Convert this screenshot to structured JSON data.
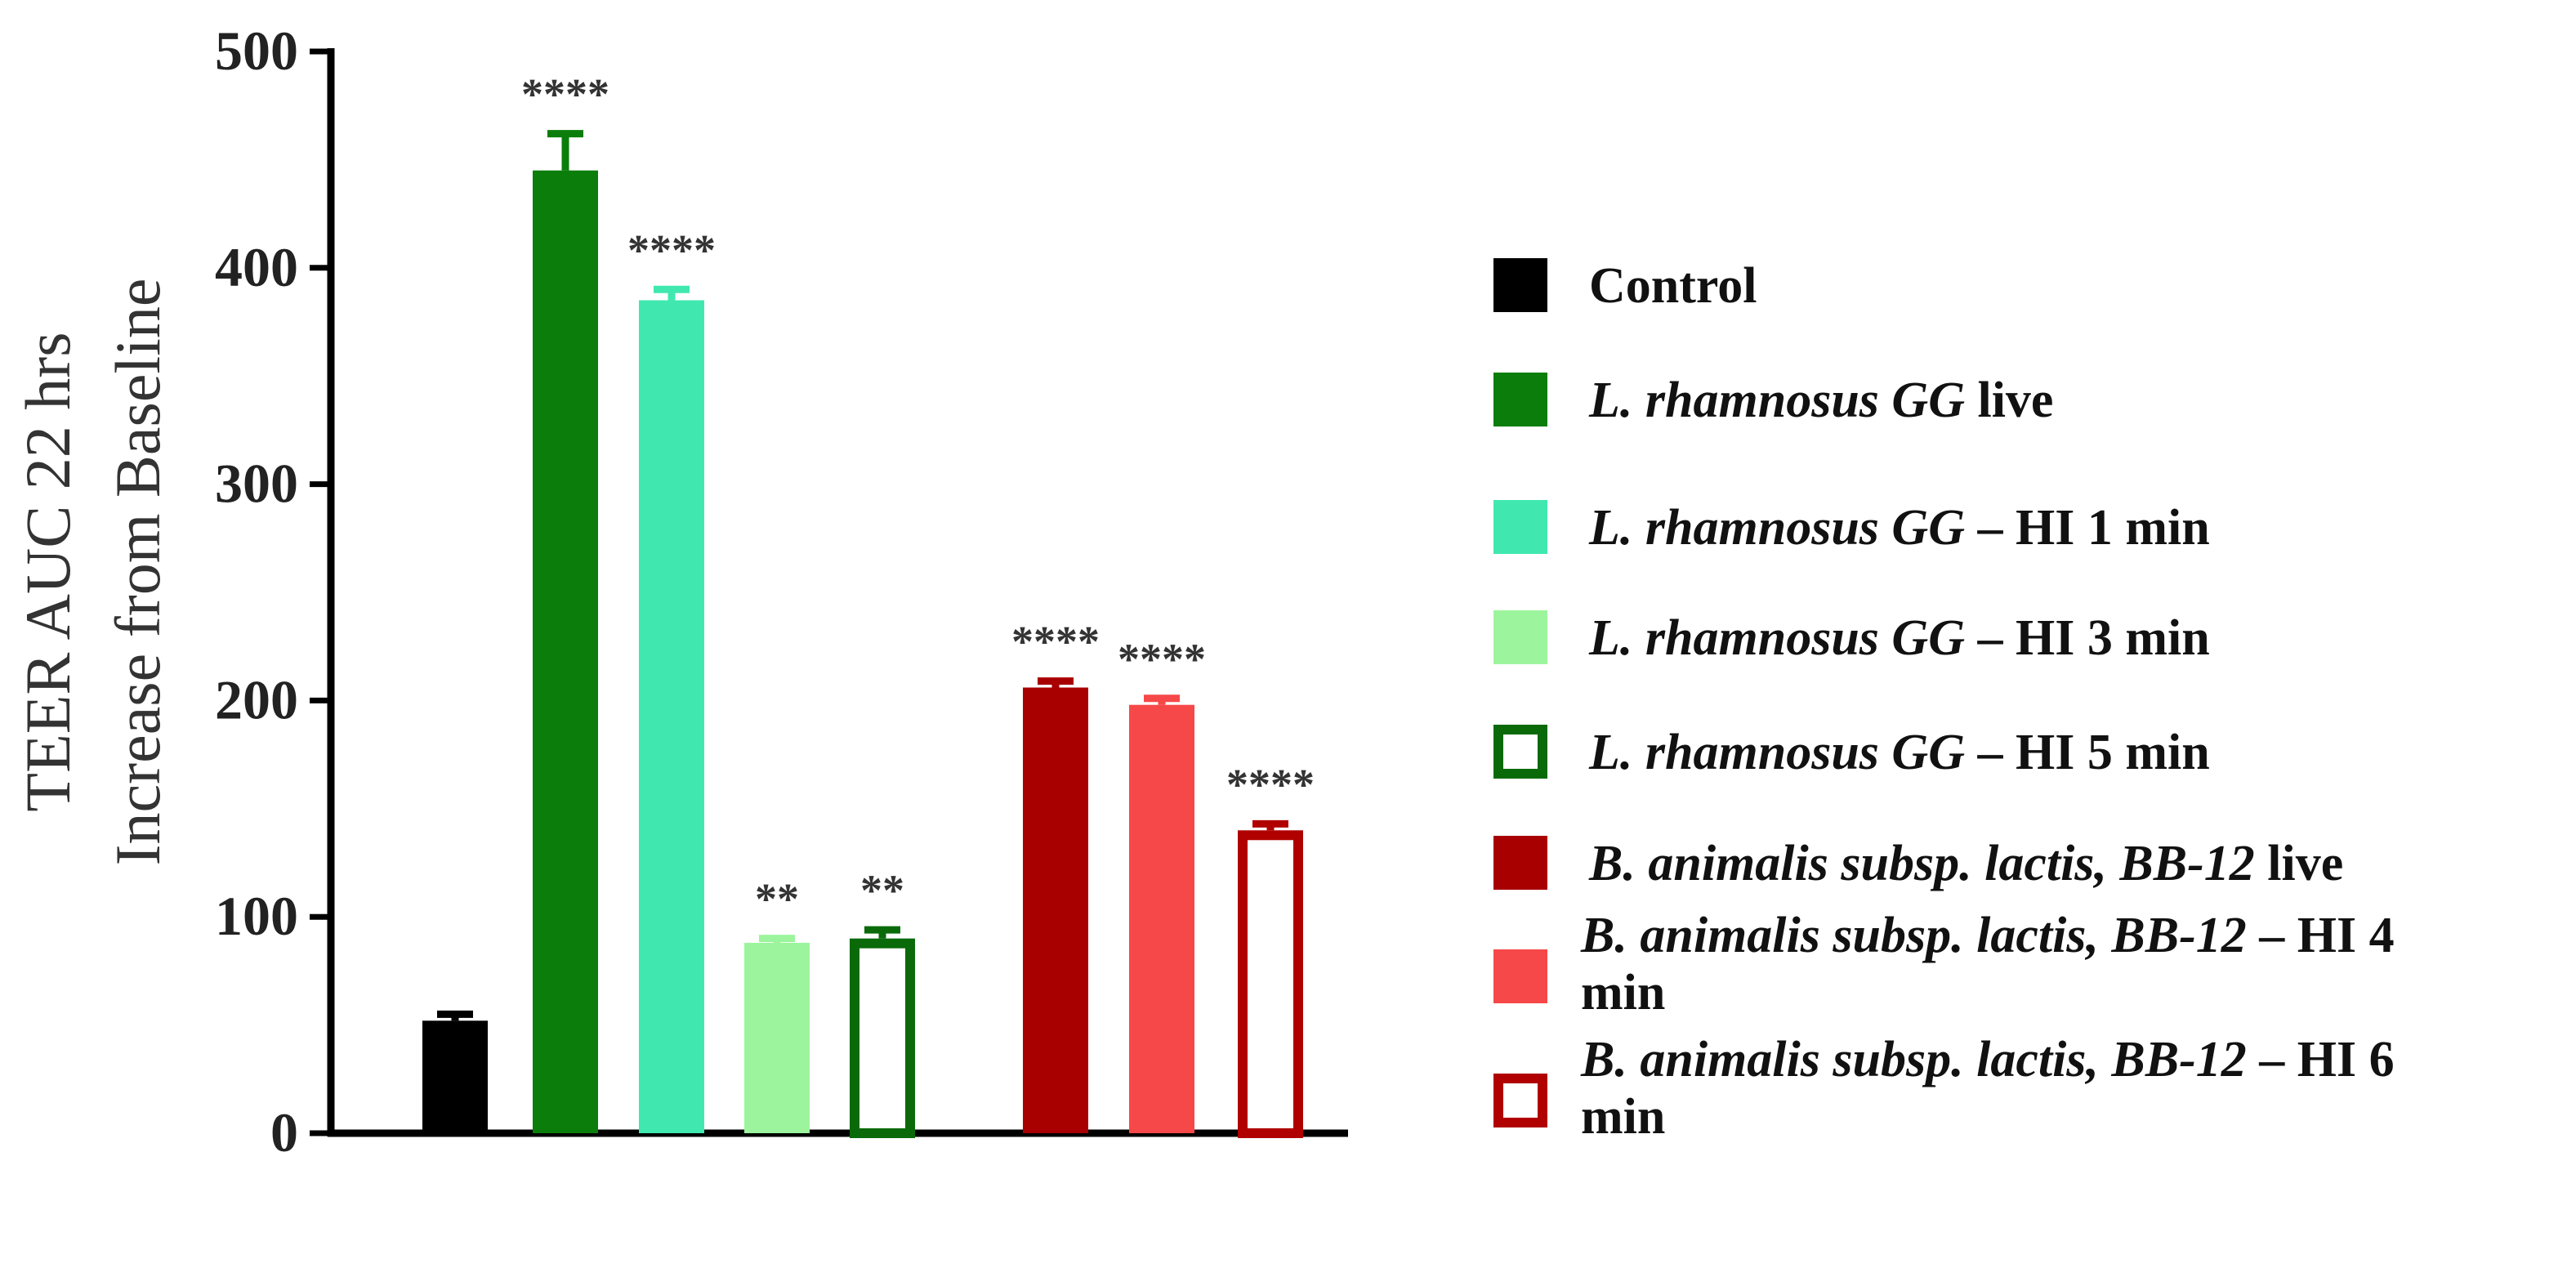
{
  "chart_data": {
    "type": "bar",
    "ylabel_line1": "TEER AUC 22 hrs",
    "ylabel_line2": "Increase from Baseline",
    "xlabel": "",
    "ylim": [
      0,
      500
    ],
    "yticks": [
      0,
      100,
      200,
      300,
      400,
      500
    ],
    "legend_position": "right",
    "series": [
      {
        "legend_italic": "",
        "legend_plain": "Control",
        "value": 52,
        "error": 3,
        "color": "#000000",
        "fill": "solid",
        "significance": ""
      },
      {
        "legend_italic": "L. rhamnosus GG",
        "legend_plain": " live",
        "value": 445,
        "error": 17,
        "color": "#0a7d0a",
        "fill": "solid",
        "significance": "****"
      },
      {
        "legend_italic": "L. rhamnosus GG",
        "legend_plain": " – HI 1 min",
        "value": 385,
        "error": 5,
        "color": "#40e8b0",
        "fill": "solid",
        "significance": "****"
      },
      {
        "legend_italic": "L. rhamnosus GG",
        "legend_plain": " – HI 3 min",
        "value": 88,
        "error": 2,
        "color": "#9cf59c",
        "fill": "solid",
        "significance": "**"
      },
      {
        "legend_italic": "L. rhamnosus GG",
        "legend_plain": " – HI 5 min",
        "value": 90,
        "error": 4,
        "color": "#0a6a0a",
        "fill": "hollow",
        "significance": "**"
      },
      {
        "legend_italic": "B. animalis subsp. lactis, BB-12",
        "legend_plain": " live",
        "value": 206,
        "error": 3,
        "color": "#a80000",
        "fill": "solid",
        "significance": "****"
      },
      {
        "legend_italic": "B. animalis subsp. lactis, BB-12",
        "legend_plain": " – HI 4 min",
        "value": 198,
        "error": 3,
        "color": "#f64848",
        "fill": "solid",
        "significance": "****"
      },
      {
        "legend_italic": "B. animalis subsp. lactis, BB-12",
        "legend_plain": " – HI 6 min",
        "value": 140,
        "error": 3,
        "color": "#b00000",
        "fill": "hollow",
        "significance": "****"
      }
    ]
  }
}
